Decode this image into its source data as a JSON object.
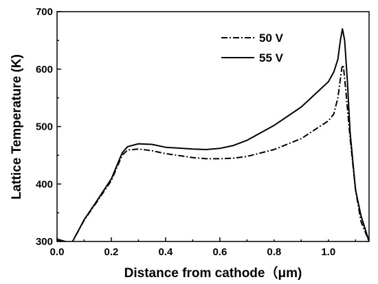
{
  "chart_data": {
    "type": "line",
    "xlabel": "Distance from cathode（μm)",
    "ylabel": "Lattice Temperature (K)",
    "xlim": [
      0.0,
      1.15
    ],
    "ylim": [
      300,
      700
    ],
    "xticks": [
      0.0,
      0.2,
      0.4,
      0.6,
      0.8,
      1.0
    ],
    "xtick_labels": [
      "0.0",
      "0.2",
      "0.4",
      "0.6",
      "0.8",
      "1.0"
    ],
    "yticks": [
      300,
      400,
      500,
      600,
      700
    ],
    "ytick_labels": [
      "300",
      "400",
      "500",
      "600",
      "700"
    ],
    "grid": false,
    "legend_position": "top-right",
    "series": [
      {
        "name": "50 V",
        "style": "dash-dot",
        "color": "#000000",
        "points": [
          [
            0.0,
            303
          ],
          [
            0.03,
            300
          ],
          [
            0.055,
            298
          ],
          [
            0.1,
            337
          ],
          [
            0.15,
            371
          ],
          [
            0.2,
            406
          ],
          [
            0.24,
            450
          ],
          [
            0.26,
            459
          ],
          [
            0.3,
            461
          ],
          [
            0.35,
            458
          ],
          [
            0.4,
            453
          ],
          [
            0.5,
            446
          ],
          [
            0.55,
            444
          ],
          [
            0.6,
            444
          ],
          [
            0.65,
            445
          ],
          [
            0.7,
            448
          ],
          [
            0.8,
            460
          ],
          [
            0.9,
            479
          ],
          [
            1.0,
            510
          ],
          [
            1.02,
            522
          ],
          [
            1.035,
            550
          ],
          [
            1.05,
            603
          ],
          [
            1.055,
            607
          ],
          [
            1.065,
            560
          ],
          [
            1.08,
            480
          ],
          [
            1.1,
            390
          ],
          [
            1.12,
            335
          ],
          [
            1.15,
            300
          ]
        ]
      },
      {
        "name": "55 V",
        "style": "solid",
        "color": "#000000",
        "points": [
          [
            0.0,
            304
          ],
          [
            0.03,
            300
          ],
          [
            0.055,
            298
          ],
          [
            0.1,
            338
          ],
          [
            0.15,
            373
          ],
          [
            0.2,
            409
          ],
          [
            0.24,
            454
          ],
          [
            0.26,
            465
          ],
          [
            0.3,
            470
          ],
          [
            0.35,
            469
          ],
          [
            0.4,
            464
          ],
          [
            0.5,
            461
          ],
          [
            0.55,
            460
          ],
          [
            0.6,
            462
          ],
          [
            0.65,
            467
          ],
          [
            0.7,
            476
          ],
          [
            0.8,
            502
          ],
          [
            0.9,
            534
          ],
          [
            1.0,
            578
          ],
          [
            1.02,
            595
          ],
          [
            1.035,
            617
          ],
          [
            1.045,
            652
          ],
          [
            1.052,
            670
          ],
          [
            1.06,
            650
          ],
          [
            1.07,
            580
          ],
          [
            1.08,
            490
          ],
          [
            1.1,
            390
          ],
          [
            1.12,
            345
          ],
          [
            1.15,
            300
          ]
        ]
      }
    ]
  }
}
